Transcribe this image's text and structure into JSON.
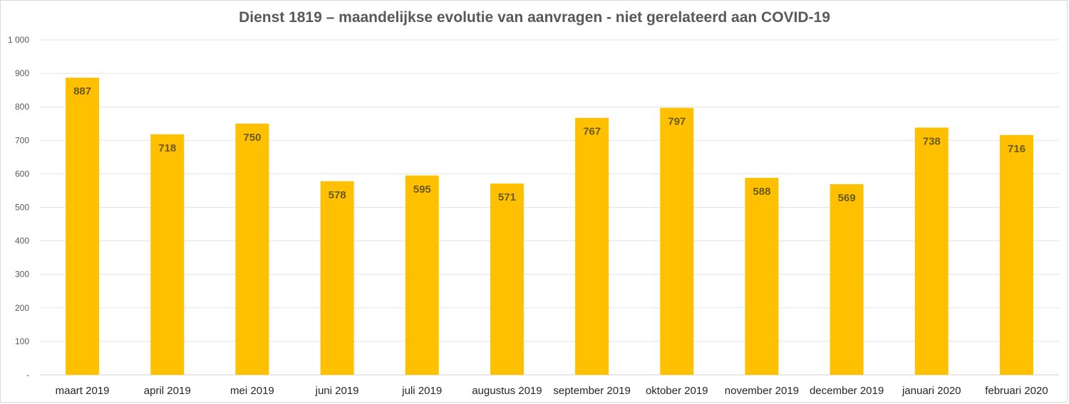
{
  "chart_data": {
    "type": "bar",
    "title": "Dienst 1819 – maandelijkse evolutie van aanvragen - niet gerelateerd aan COVID-19",
    "xlabel": "",
    "ylabel": "",
    "categories": [
      "maart 2019",
      "april 2019",
      "mei 2019",
      "juni 2019",
      "juli 2019",
      "augustus 2019",
      "september 2019",
      "oktober 2019",
      "november 2019",
      "december 2019",
      "januari 2020",
      "februari 2020"
    ],
    "values": [
      887,
      718,
      750,
      578,
      595,
      571,
      767,
      797,
      588,
      569,
      738,
      716
    ],
    "ylim": [
      0,
      1000
    ],
    "yticks": [
      0,
      100,
      200,
      300,
      400,
      500,
      600,
      700,
      800,
      900,
      1000
    ],
    "ytick_labels": [
      "-",
      "100",
      "200",
      "300",
      "400",
      "500",
      "600",
      "700",
      "800",
      "900",
      "1 000"
    ],
    "grid": true,
    "bar_color": "#ffc000",
    "data_labels": true
  }
}
